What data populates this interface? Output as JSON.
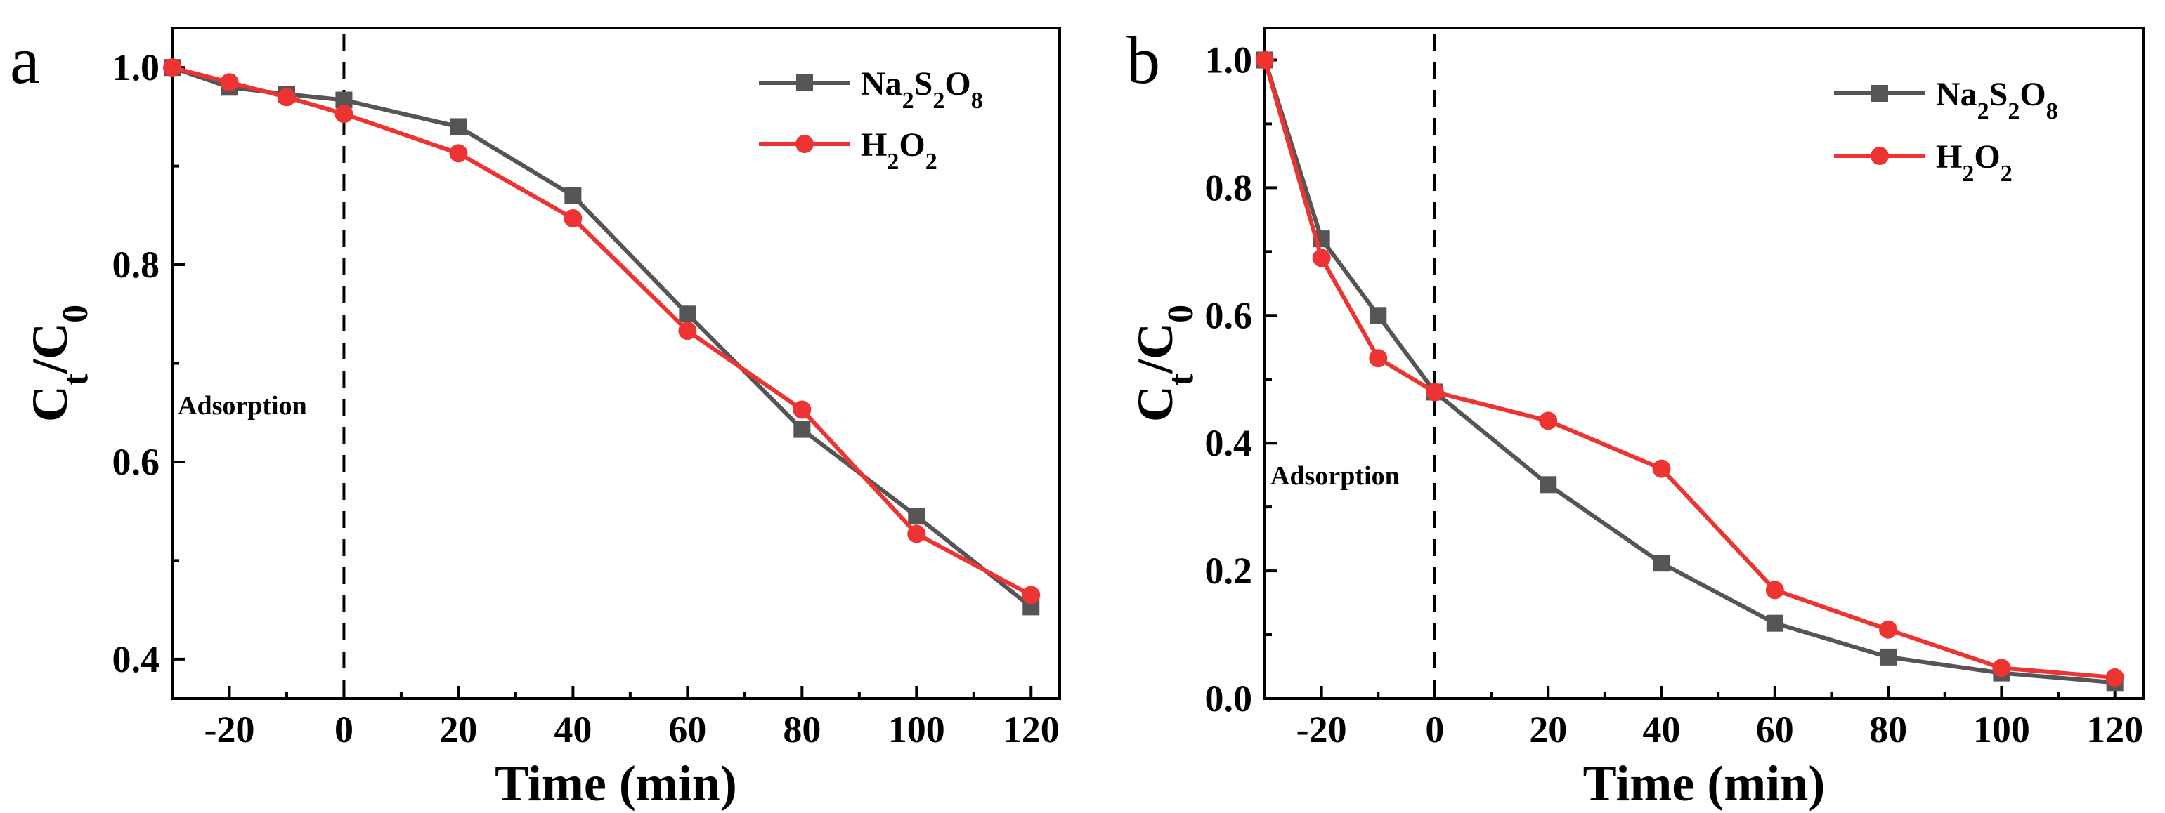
{
  "chart_data": [
    {
      "type": "line",
      "panel": "a",
      "xlabel": "Time (min)",
      "ylabel": "C_t/C_0",
      "xlim": [
        -30,
        125
      ],
      "ylim": [
        0.36,
        1.04
      ],
      "xticks": [
        -20,
        0,
        20,
        40,
        60,
        80,
        100,
        120
      ],
      "yticks": [
        0.4,
        0.6,
        0.8,
        1.0
      ],
      "annotation": "Adsorption",
      "divider_x": 0,
      "legend_position": "top-right",
      "series": [
        {
          "name": "Na2S2O8",
          "color": "#555555",
          "marker": "square",
          "x": [
            -30,
            -20,
            -10,
            0,
            20,
            40,
            60,
            80,
            100,
            120
          ],
          "y": [
            1.0,
            0.98,
            0.973,
            0.967,
            0.94,
            0.87,
            0.75,
            0.633,
            0.545,
            0.453
          ]
        },
        {
          "name": "H2O2",
          "color": "#ee3333",
          "marker": "circle",
          "x": [
            -30,
            -20,
            -10,
            0,
            20,
            40,
            60,
            80,
            100,
            120
          ],
          "y": [
            1.0,
            0.985,
            0.97,
            0.953,
            0.913,
            0.847,
            0.733,
            0.653,
            0.527,
            0.465
          ]
        }
      ]
    },
    {
      "type": "line",
      "panel": "b",
      "xlabel": "Time (min)",
      "ylabel": "C_t/C_0",
      "xlim": [
        -30,
        125
      ],
      "ylim": [
        0.0,
        1.05
      ],
      "xticks": [
        -20,
        0,
        20,
        40,
        60,
        80,
        100,
        120
      ],
      "yticks": [
        0.0,
        0.2,
        0.4,
        0.6,
        0.8,
        1.0
      ],
      "annotation": "Adsorption",
      "divider_x": 0,
      "legend_position": "top-right",
      "series": [
        {
          "name": "Na2S2O8",
          "color": "#555555",
          "marker": "square",
          "x": [
            -30,
            -20,
            -10,
            0,
            20,
            40,
            60,
            80,
            100,
            120
          ],
          "y": [
            1.0,
            0.72,
            0.6,
            0.48,
            0.335,
            0.212,
            0.118,
            0.065,
            0.04,
            0.025
          ]
        },
        {
          "name": "H2O2",
          "color": "#ee3333",
          "marker": "circle",
          "x": [
            -30,
            -20,
            -10,
            0,
            20,
            40,
            60,
            80,
            100,
            120
          ],
          "y": [
            1.0,
            0.69,
            0.533,
            0.48,
            0.435,
            0.36,
            0.17,
            0.108,
            0.048,
            0.033
          ]
        }
      ]
    }
  ]
}
